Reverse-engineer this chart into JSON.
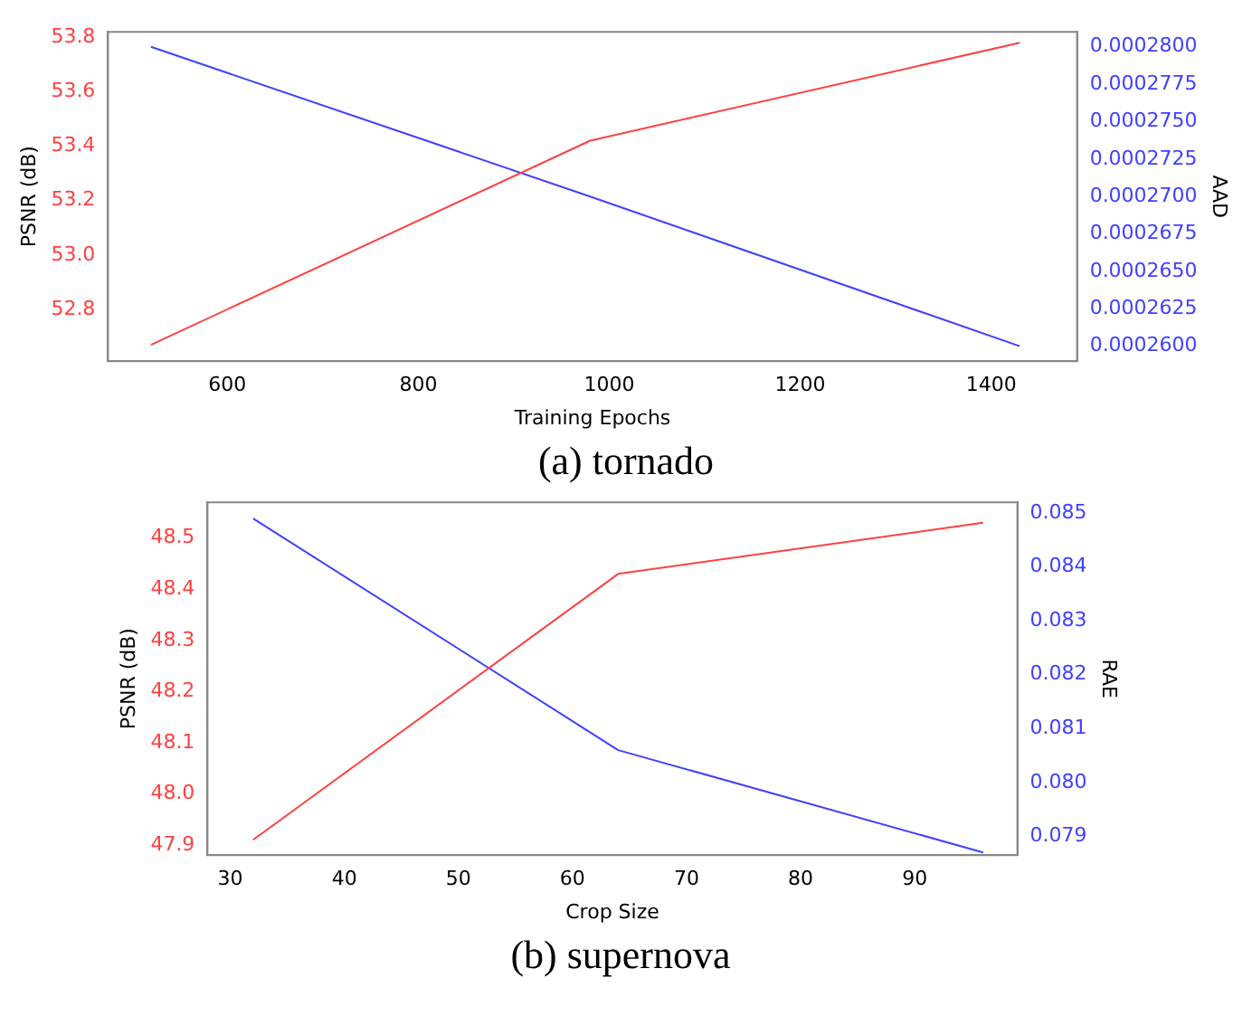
{
  "chart_data": [
    {
      "type": "line",
      "title": "(a) tornado",
      "xlabel": "Training Epochs",
      "ylabel": "PSNR (dB)",
      "y2label": "AAD",
      "x": [
        520,
        980,
        1430
      ],
      "series": [
        {
          "color": "#ff4040",
          "values": [
            52.67,
            53.42,
            53.78
          ]
        },
        {
          "color": "#4040ff",
          "values": [
            0.00028,
            0.00027,
            0.00026
          ],
          "axis": "y2"
        }
      ],
      "xlim": [
        475,
        1490
      ],
      "xticks": [
        600,
        800,
        1000,
        1200,
        1400
      ],
      "ylim": [
        52.61,
        53.82
      ],
      "yticks": [
        {
          "value": 52.8,
          "label": "52.8"
        },
        {
          "value": 53.0,
          "label": "53.0"
        },
        {
          "value": 53.2,
          "label": "53.2"
        },
        {
          "value": 53.4,
          "label": "53.4"
        },
        {
          "value": 53.6,
          "label": "53.6"
        },
        {
          "value": 53.8,
          "label": "53.8"
        }
      ],
      "y2lim": [
        0.000259,
        0.000281
      ],
      "y2ticks": [
        {
          "value": 0.00026,
          "label": "0.0002600"
        },
        {
          "value": 0.0002625,
          "label": "0.0002625"
        },
        {
          "value": 0.000265,
          "label": "0.0002650"
        },
        {
          "value": 0.0002675,
          "label": "0.0002675"
        },
        {
          "value": 0.00027,
          "label": "0.0002700"
        },
        {
          "value": 0.0002725,
          "label": "0.0002725"
        },
        {
          "value": 0.000275,
          "label": "0.0002750"
        },
        {
          "value": 0.0002775,
          "label": "0.0002775"
        },
        {
          "value": 0.00028,
          "label": "0.0002800"
        }
      ],
      "grid": false,
      "legend": false
    },
    {
      "type": "line",
      "title": "(b) supernova",
      "xlabel": "Crop Size",
      "ylabel": "PSNR (dB)",
      "y2label": "RAE",
      "x": [
        32,
        64,
        96
      ],
      "series": [
        {
          "color": "#ff4040",
          "values": [
            47.91,
            48.43,
            48.53
          ]
        },
        {
          "color": "#4040ff",
          "values": [
            0.0849,
            0.0806,
            0.0787
          ],
          "axis": "y2"
        }
      ],
      "xlim": [
        28,
        99
      ],
      "xticks": [
        30,
        40,
        50,
        60,
        70,
        80,
        90
      ],
      "ylim": [
        47.88,
        48.57
      ],
      "yticks": [
        47.9,
        {
          "value": 48.0,
          "label": "48.0"
        },
        48.1,
        48.2,
        48.3,
        48.4,
        48.5
      ],
      "y2lim": [
        0.07865,
        0.0852
      ],
      "y2ticks": [
        0.079,
        {
          "value": 0.08,
          "label": "0.080"
        },
        0.081,
        0.082,
        0.083,
        0.084,
        0.085
      ],
      "grid": false,
      "legend": false
    }
  ]
}
